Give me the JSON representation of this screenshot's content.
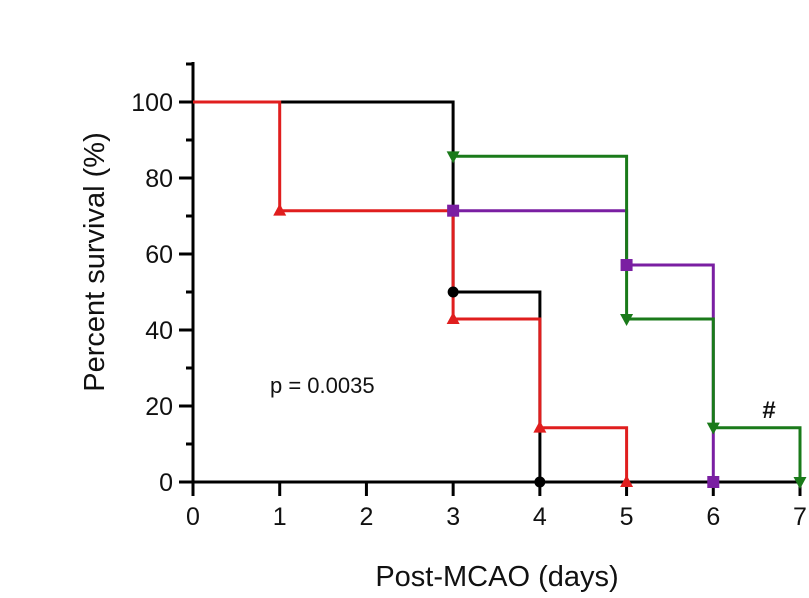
{
  "chart_data": {
    "type": "line",
    "step": true,
    "title": "",
    "xlabel": "Post-MCAO (days)",
    "ylabel": "Percent survival (%)",
    "xlim": [
      0,
      7
    ],
    "ylim": [
      0,
      100
    ],
    "xticks": [
      0,
      1,
      2,
      3,
      4,
      5,
      6,
      7
    ],
    "yticks": [
      0,
      20,
      40,
      60,
      80,
      100
    ],
    "grid": false,
    "legend": "none",
    "annotations": [
      {
        "text": "p = 0.0035"
      },
      {
        "text": "#",
        "color": "#1a7a1a"
      }
    ],
    "series": [
      {
        "color": "#000000",
        "marker": "circle",
        "points": [
          [
            0,
            100
          ],
          [
            3,
            100
          ],
          [
            3,
            50
          ],
          [
            4,
            50
          ],
          [
            4,
            0
          ]
        ],
        "markers": [
          [
            3,
            50
          ],
          [
            4,
            0
          ]
        ]
      },
      {
        "color": "#e01e1e",
        "marker": "triangle-up",
        "points": [
          [
            0,
            100
          ],
          [
            1,
            100
          ],
          [
            1,
            71.4
          ],
          [
            3,
            71.4
          ],
          [
            3,
            42.9
          ],
          [
            4,
            42.9
          ],
          [
            4,
            14.3
          ],
          [
            5,
            14.3
          ],
          [
            5,
            0
          ]
        ],
        "markers": [
          [
            1,
            71.4
          ],
          [
            3,
            42.9
          ],
          [
            4,
            14.3
          ],
          [
            5,
            0
          ]
        ]
      },
      {
        "color": "#7a1fa2",
        "marker": "square",
        "points": [
          [
            3,
            71.4
          ],
          [
            5,
            71.4
          ],
          [
            5,
            57.1
          ],
          [
            6,
            57.1
          ],
          [
            6,
            0
          ]
        ],
        "markers": [
          [
            3,
            71.4
          ],
          [
            5,
            57.1
          ],
          [
            6,
            0
          ]
        ]
      },
      {
        "color": "#1a7a1a",
        "marker": "triangle-down",
        "points": [
          [
            3,
            85.7
          ],
          [
            5,
            85.7
          ],
          [
            5,
            42.9
          ],
          [
            6,
            42.9
          ],
          [
            6,
            14.3
          ],
          [
            7,
            14.3
          ],
          [
            7,
            0
          ]
        ],
        "markers": [
          [
            3,
            85.7
          ],
          [
            5,
            42.9
          ],
          [
            6,
            14.3
          ],
          [
            7,
            0
          ]
        ]
      }
    ]
  }
}
